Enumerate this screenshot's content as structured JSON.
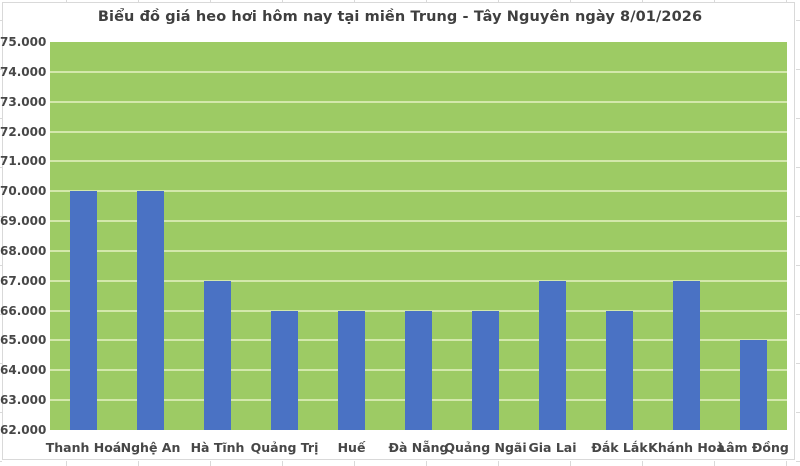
{
  "chart_data": {
    "type": "bar",
    "title": "Biểu đồ giá heo hơi hôm nay tại miền Trung - Tây Nguyên ngày 8/01/2026",
    "categories": [
      "Thanh Hoá",
      "Nghệ An",
      "Hà Tĩnh",
      "Quảng Trị",
      "Huế",
      "Đà Nẵng",
      "Quảng Ngãi",
      "Gia Lai",
      "Đắk Lắk",
      "Khánh Hoà",
      "Lâm Đồng"
    ],
    "values": [
      70000,
      70000,
      67000,
      66000,
      66000,
      66000,
      66000,
      67000,
      66000,
      67000,
      65000
    ],
    "xlabel": "",
    "ylabel": "",
    "ylim": [
      62000,
      75000
    ],
    "ytick_step": 1000,
    "ytick_labels": [
      "62.000",
      "63.000",
      "64.000",
      "65.000",
      "66.000",
      "67.000",
      "68.000",
      "69.000",
      "70.000",
      "71.000",
      "72.000",
      "73.000",
      "74.000",
      "75.000"
    ],
    "grid": true,
    "legend": false,
    "colors": {
      "bar": "#4A72C4",
      "plot_bg": "#9DCB64",
      "gridline": "#D3E8AB",
      "title_text": "#3F3F3F",
      "axis_text": "#474747",
      "chart_border": "#D9D9D9",
      "chart_bg": "#FFFFFF"
    }
  }
}
